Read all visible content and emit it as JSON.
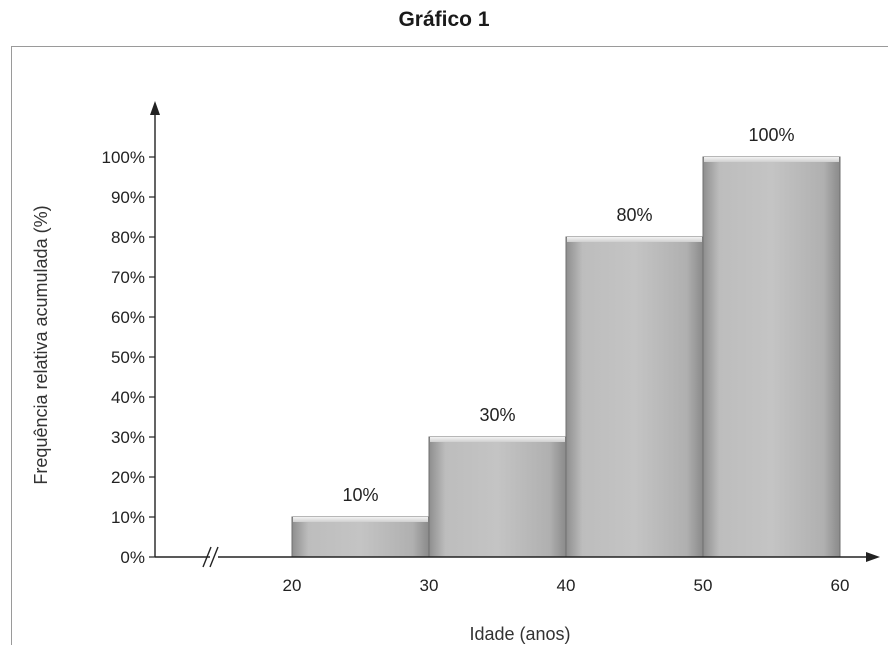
{
  "chart_data": {
    "type": "bar",
    "title": "Gráfico 1",
    "xlabel": "Idade (anos)",
    "ylabel": "Frequência relativa acumulada (%)",
    "x_ticks": [
      20,
      30,
      40,
      50,
      60
    ],
    "y_ticks": [
      "0%",
      "10%",
      "20%",
      "30%",
      "40%",
      "50%",
      "60%",
      "70%",
      "80%",
      "90%",
      "100%"
    ],
    "ylim": [
      0,
      100
    ],
    "bins": [
      {
        "from": 20,
        "to": 30,
        "value": 10,
        "label": "10%"
      },
      {
        "from": 30,
        "to": 40,
        "value": 30,
        "label": "30%"
      },
      {
        "from": 40,
        "to": 50,
        "value": 80,
        "label": "80%"
      },
      {
        "from": 50,
        "to": 60,
        "value": 100,
        "label": "100%"
      }
    ],
    "x_axis_break": true,
    "grid": false,
    "bar_color": "#b4b4b4"
  }
}
